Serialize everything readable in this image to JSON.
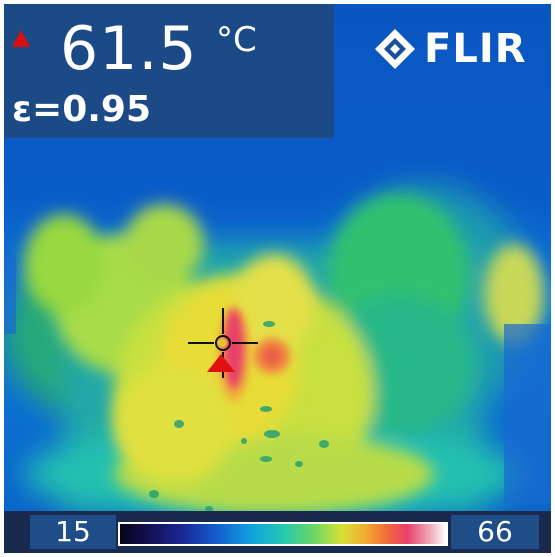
{
  "readout": {
    "max_marker": "triangle-up-icon",
    "temperature": "61.5",
    "unit": "°C",
    "emissivity": "ε=0.95"
  },
  "brand": {
    "logo_text": "FLIR",
    "logo_icon": "flir-diamond-icon"
  },
  "scale": {
    "min": "15",
    "max": "66",
    "palette": "rainbow"
  },
  "crosshair": {
    "icon": "crosshair-icon",
    "hotspot_icon": "hotspot-triangle-icon"
  },
  "colors": {
    "background_cold": "#0a4fb0",
    "warm": "#e0e040",
    "hot": "#e8406a",
    "marker_red": "#d81010"
  }
}
